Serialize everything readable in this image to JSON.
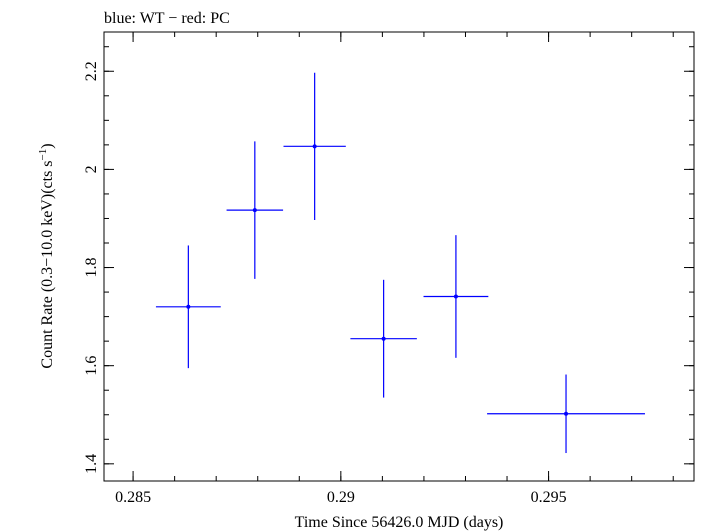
{
  "chart_data": {
    "type": "scatter",
    "title": "blue: WT − red: PC",
    "xlabel": "Time Since 56426.0 MJD (days)",
    "ylabel": "Count Rate (0.3−10.0 keV)(cts s",
    "ylabel_sup": "−1",
    "ylabel_close": ")",
    "xlim": [
      0.2843,
      0.2985
    ],
    "ylim": [
      1.365,
      2.28
    ],
    "x_ticks": [
      {
        "value": 0.285,
        "label": "0.285"
      },
      {
        "value": 0.29,
        "label": "0.29"
      },
      {
        "value": 0.295,
        "label": "0.295"
      }
    ],
    "y_ticks": [
      {
        "value": 1.4,
        "label": "1.4"
      },
      {
        "value": 1.6,
        "label": "1.6"
      },
      {
        "value": 1.8,
        "label": "1.8"
      },
      {
        "value": 2.0,
        "label": "2"
      },
      {
        "value": 2.2,
        "label": "2.2"
      }
    ],
    "x_minor_step": 0.001,
    "y_minor_step": 0.05,
    "grid": false,
    "series": [
      {
        "color": "#0000ff",
        "points": [
          {
            "x": 0.28633,
            "xerr": 0.00078,
            "y": 1.72,
            "yerr": 0.125
          },
          {
            "x": 0.28793,
            "xerr": 0.00068,
            "y": 1.917,
            "yerr": 0.14
          },
          {
            "x": 0.28937,
            "xerr": 0.00075,
            "y": 2.047,
            "yerr": 0.15
          },
          {
            "x": 0.29103,
            "xerr": 0.0008,
            "y": 1.655,
            "yerr": 0.12
          },
          {
            "x": 0.29277,
            "xerr": 0.00078,
            "y": 1.741,
            "yerr": 0.125
          },
          {
            "x": 0.29542,
            "xerr": 0.0019,
            "y": 1.502,
            "yerr": 0.08
          }
        ]
      }
    ]
  }
}
